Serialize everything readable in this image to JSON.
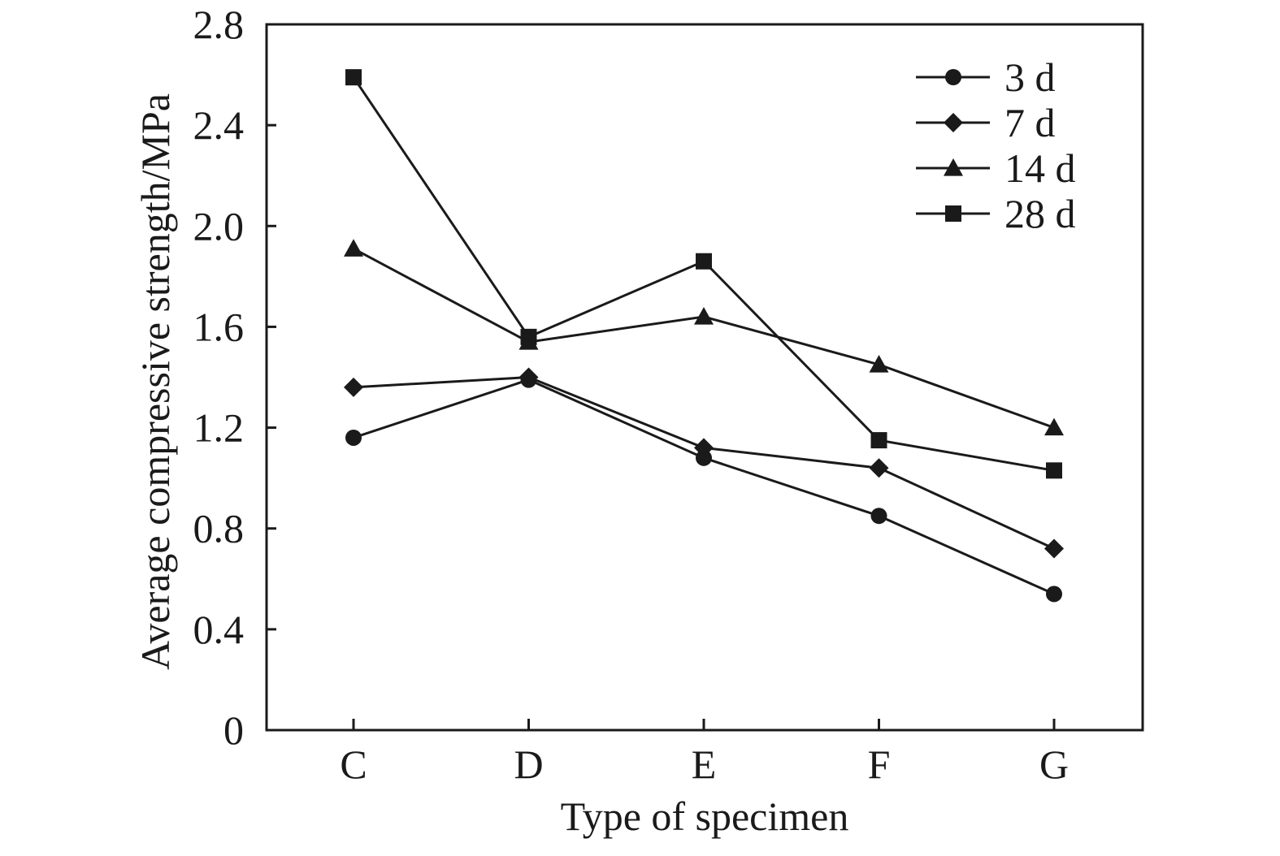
{
  "chart_data": {
    "type": "line",
    "categories": [
      "C",
      "D",
      "E",
      "F",
      "G"
    ],
    "xlabel": "Type of specimen",
    "ylabel": "Average compressive strength/MPa",
    "ylim": [
      0,
      2.8
    ],
    "yticks": [
      "0",
      "0.4",
      "0.8",
      "1.2",
      "1.6",
      "2.0",
      "2.4",
      "2.8"
    ],
    "grid": false,
    "legend_position": "top-right",
    "series": [
      {
        "name": "3 d",
        "marker": "circle",
        "values": [
          1.16,
          1.39,
          1.08,
          0.85,
          0.54
        ]
      },
      {
        "name": "7 d",
        "marker": "diamond",
        "values": [
          1.36,
          1.4,
          1.12,
          1.04,
          0.72
        ]
      },
      {
        "name": "14 d",
        "marker": "triangle",
        "values": [
          1.91,
          1.54,
          1.64,
          1.45,
          1.2
        ]
      },
      {
        "name": "28 d",
        "marker": "square",
        "values": [
          2.59,
          1.56,
          1.86,
          1.15,
          1.03
        ]
      }
    ],
    "line_color": "#1a1a1a"
  }
}
